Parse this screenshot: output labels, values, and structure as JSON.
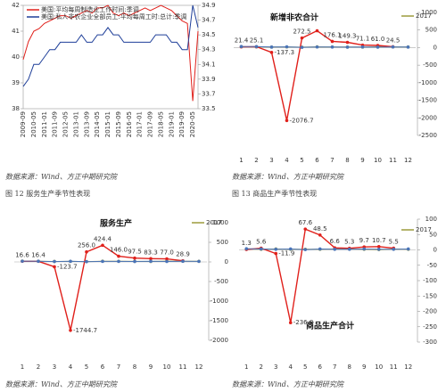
{
  "chart_data": [
    {
      "type": "line",
      "categories": [
        "2009-09",
        null,
        "2010-05",
        null,
        "2011-01",
        null,
        "2011-09",
        null,
        "2012-05",
        null,
        "2013-01",
        null,
        "2013-09",
        null,
        "2014-05",
        null,
        "2015-01",
        null,
        "2015-09",
        null,
        "2016-05",
        null,
        "2017-01",
        null,
        "2017-09",
        null,
        "2018-05",
        null,
        "2019-01",
        null,
        "2019-09",
        null,
        "2020-05",
        null
      ],
      "series": [
        {
          "name": "美国:平均每周制造业工作时间:季调",
          "color": "#e0201b",
          "values": [
            39.9,
            40.6,
            41.0,
            41.1,
            41.3,
            41.4,
            41.5,
            41.6,
            41.6,
            41.5,
            41.6,
            41.7,
            41.8,
            41.7,
            41.9,
            41.9,
            42.0,
            41.7,
            41.6,
            41.7,
            41.6,
            41.7,
            41.8,
            41.9,
            41.8,
            41.9,
            42.0,
            41.9,
            41.8,
            41.6,
            41.4,
            41.3,
            38.3,
            41.0
          ]
        },
        {
          "name": "美国:私人非农企业全部员工:平均每周工时:总计:季调",
          "color": "#1f3f99",
          "axis": "y2",
          "values": [
            33.8,
            33.9,
            34.1,
            34.1,
            34.2,
            34.3,
            34.3,
            34.4,
            34.4,
            34.4,
            34.4,
            34.5,
            34.4,
            34.4,
            34.5,
            34.5,
            34.6,
            34.5,
            34.5,
            34.4,
            34.4,
            34.4,
            34.4,
            34.4,
            34.4,
            34.5,
            34.5,
            34.5,
            34.4,
            34.4,
            34.3,
            34.3,
            34.9,
            34.6
          ]
        }
      ],
      "ylim": [
        38,
        42
      ],
      "yticks": [
        38,
        39,
        40,
        41,
        42
      ],
      "y2lim": [
        33.5,
        34.9
      ],
      "y2ticks": [
        33.5,
        33.7,
        33.9,
        34.1,
        34.3,
        34.5,
        34.7,
        34.9
      ]
    },
    {
      "type": "line",
      "title": "新增非农合计",
      "categories": [
        1,
        2,
        3,
        4,
        5,
        6,
        7,
        8,
        9,
        10,
        11,
        12
      ],
      "series": [
        {
          "name": "2017",
          "color": "#9c9a3c",
          "values": [
            26,
            20,
            15,
            17,
            13,
            21,
            19,
            15,
            14,
            24,
            20,
            18
          ]
        },
        {
          "color": "#e0201b",
          "values": [
            21.4,
            25.1,
            -137.3,
            -2076.7,
            272.5,
            480,
            176.1,
            149.3,
            71.1,
            61.0,
            24.5,
            null
          ],
          "value_labels": [
            "21.4",
            "25.1",
            "-137.3",
            "-2076.7",
            "272.5",
            null,
            "176.1",
            "149.3",
            "71.1",
            "61.0",
            "24.5",
            null
          ]
        },
        {
          "color": "#4a74b8",
          "values": [
            31,
            29,
            15,
            22,
            8,
            17,
            16,
            13,
            18,
            13,
            18,
            15
          ]
        }
      ],
      "ylim": [
        -2500,
        1000
      ],
      "yticks": [
        -2500,
        -2000,
        -1500,
        -1000,
        -500,
        0,
        500,
        1000
      ]
    },
    {
      "type": "line",
      "title": "服务生产",
      "categories": [
        1,
        2,
        3,
        4,
        5,
        6,
        7,
        8,
        9,
        10,
        11,
        12
      ],
      "series": [
        {
          "name": "2017",
          "color": "#9c9a3c",
          "values": [
            22,
            17,
            12,
            14,
            10,
            18,
            16,
            13,
            12,
            20,
            17,
            15
          ]
        },
        {
          "color": "#e0201b",
          "values": [
            16.6,
            16.4,
            -123.7,
            -1744.7,
            256.0,
            424.4,
            146.0,
            97.5,
            83.3,
            77.0,
            28.9,
            null
          ],
          "value_labels": [
            "16.6",
            "16.4",
            "-123.7",
            "-1744.7",
            "256.0",
            "424.4",
            "146.0",
            "97.5",
            "83.3",
            "77.0",
            "28.9",
            null
          ]
        },
        {
          "color": "#4a74b8",
          "values": [
            20,
            18,
            10,
            15,
            7,
            14,
            13,
            12,
            15,
            11,
            16,
            13
          ]
        }
      ],
      "ylim": [
        -2000,
        1000
      ],
      "yticks": [
        -2000,
        -1500,
        -1000,
        -500,
        0,
        500,
        1000
      ]
    },
    {
      "type": "line",
      "title": "商品生产合计",
      "categories": [
        1,
        2,
        3,
        4,
        5,
        6,
        7,
        8,
        9,
        10,
        11,
        12
      ],
      "series": [
        {
          "name": "2017",
          "color": "#9c9a3c",
          "values": [
            3,
            2,
            3,
            2,
            2,
            2,
            3,
            3,
            2,
            1,
            3,
            2
          ]
        },
        {
          "color": "#e0201b",
          "values": [
            1.3,
            5.6,
            -11.9,
            -236.8,
            67.6,
            48.5,
            6.6,
            5.3,
            9.7,
            10.7,
            5.5,
            null
          ],
          "value_labels": [
            "1.3",
            "5.6",
            "-11.9",
            "-236.8",
            "67.6",
            "48.5",
            "6.6",
            "5.3",
            "9.7",
            "10.7",
            "5.5",
            null
          ]
        },
        {
          "color": "#4a74b8",
          "values": [
            4,
            3,
            2,
            3,
            1,
            3,
            2,
            2,
            3,
            2,
            2,
            3
          ]
        }
      ],
      "ylim": [
        -300,
        100
      ],
      "yticks": [
        -300,
        -250,
        -200,
        -150,
        -100,
        -50,
        0,
        50,
        100
      ]
    }
  ],
  "sources": [
    "数据来源：Wind、方正中期研究院",
    "数据来源：Wind、方正中期研究院",
    "数据来源：Wind、方正中期研究院",
    "数据来源：Wind、方正中期研究院"
  ],
  "captions": [
    "图 12  服务生产季节性表现",
    "图 13  商品生产季节性表现"
  ]
}
